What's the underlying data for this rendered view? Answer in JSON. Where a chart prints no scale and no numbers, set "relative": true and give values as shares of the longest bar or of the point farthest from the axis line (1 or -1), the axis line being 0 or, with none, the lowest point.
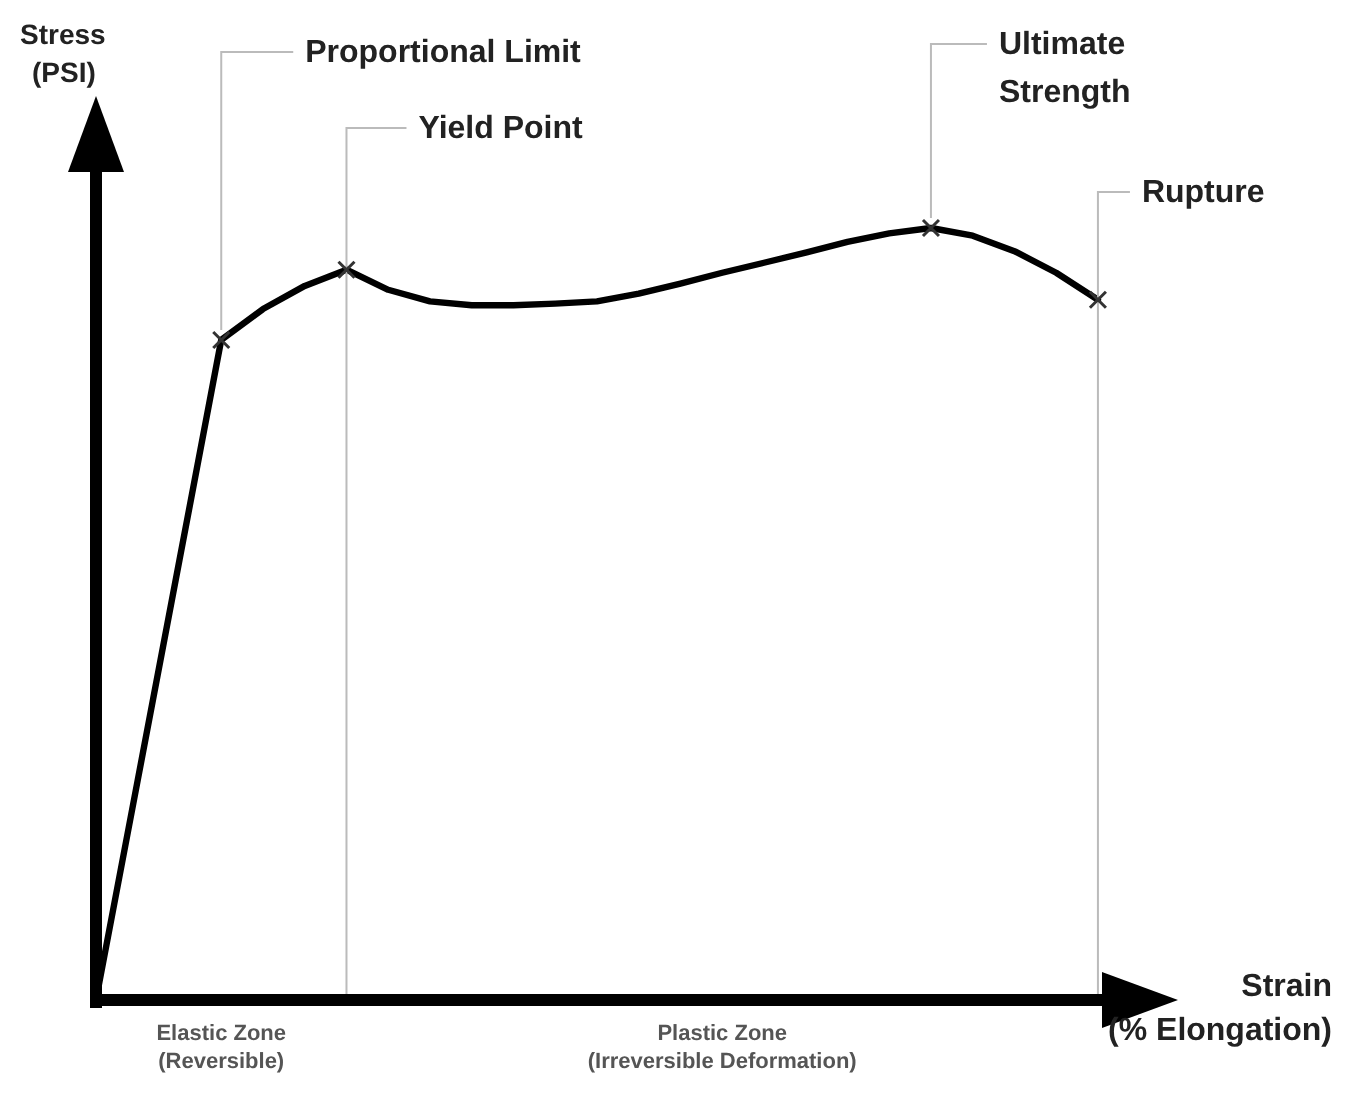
{
  "chart_data": {
    "type": "line",
    "relative": true,
    "xlabel": "Strain (% Elongation)",
    "ylabel": "Stress (PSI)",
    "categories": [
      null,
      null,
      null,
      null,
      null,
      null,
      null,
      null,
      null,
      null,
      null,
      null,
      null,
      null,
      null,
      null,
      null,
      null,
      null,
      null,
      null,
      null,
      null,
      null,
      null
    ],
    "series": [
      {
        "color": "#000000",
        "values": [
          0,
          0.285,
          0.57,
          0.855,
          0.895,
          0.925,
          0.946,
          0.92,
          0.905,
          0.9,
          0.9,
          0.902,
          0.905,
          0.915,
          0.928,
          0.942,
          0.955,
          0.968,
          0.982,
          0.993,
          1,
          0.99,
          0.97,
          0.942,
          0.907
        ]
      }
    ],
    "annotations": [
      "Proportional Limit",
      "Yield Point",
      "Ultimate Strength",
      "Rupture",
      "Elastic Zone (Reversible)",
      "Plastic Zone (Irreversible Deformation)"
    ]
  }
}
